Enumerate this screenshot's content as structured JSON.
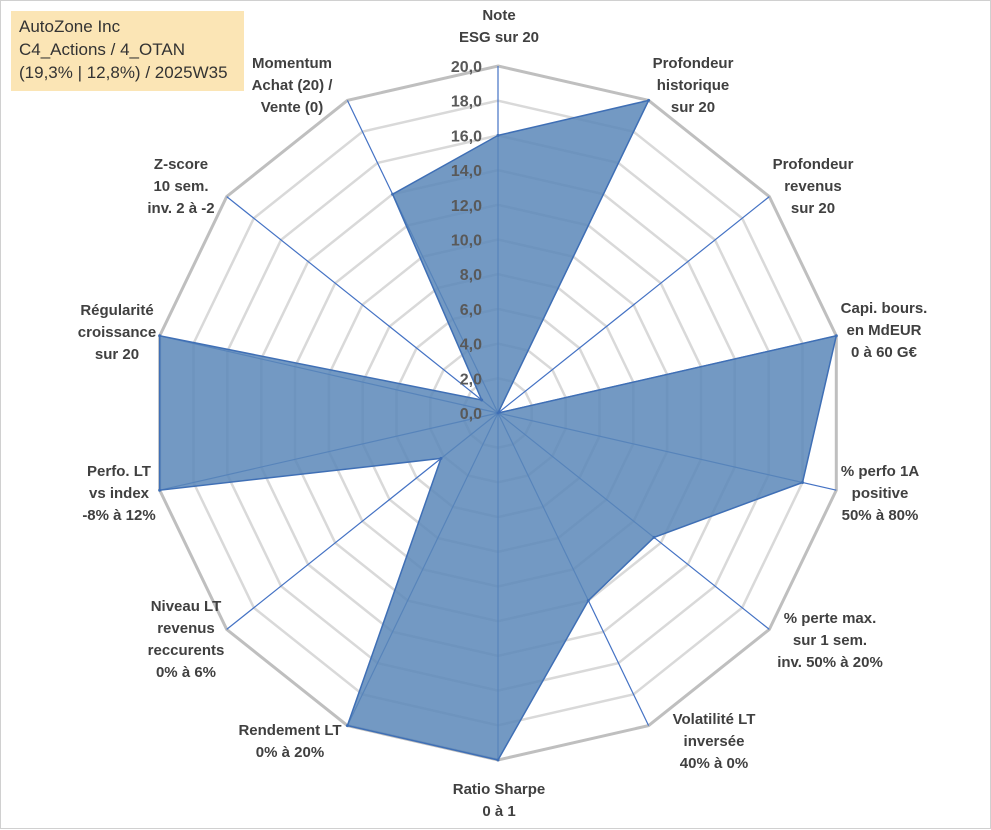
{
  "title_box": {
    "line1": "AutoZone Inc",
    "line2": "C4_Actions / 4_OTAN",
    "line3": "(19,3% | 12,8%) / 2025W35"
  },
  "colors": {
    "fill": "#5b87b8",
    "stroke": "#3f6fb5",
    "grid_outer": "#bfbfbf",
    "grid_inner": "#d9d9d9",
    "spoke": "#4472c4",
    "title_bg": "#fbe5b5"
  },
  "chart_data": {
    "type": "radar",
    "range": [
      0,
      20
    ],
    "tick_step": 2,
    "tick_labels": [
      "0,0",
      "2,0",
      "4,0",
      "6,0",
      "8,0",
      "10,0",
      "12,0",
      "14,0",
      "16,0",
      "18,0",
      "20,0"
    ],
    "axes": [
      {
        "label": [
          "Note",
          "ESG sur 20"
        ],
        "value": 16.0
      },
      {
        "label": [
          "Profondeur",
          "historique",
          "sur 20"
        ],
        "value": 20.0
      },
      {
        "label": [
          "Profondeur",
          "revenus",
          "sur 20"
        ],
        "value": 0.0
      },
      {
        "label": [
          "Capi. bours.",
          "en MdEUR",
          "0 à 60 G€"
        ],
        "value": 20.0
      },
      {
        "label": [
          "% perfo 1A",
          "positive",
          "50% à 80%"
        ],
        "value": 18.0
      },
      {
        "label": [
          "% perte max.",
          "sur 1 sem.",
          "inv. 50% à 20%"
        ],
        "value": 11.5
      },
      {
        "label": [
          "Volatilité LT",
          "inversée",
          "40% à 0%"
        ],
        "value": 12.0
      },
      {
        "label": [
          "Ratio Sharpe",
          "0 à 1"
        ],
        "value": 20.0
      },
      {
        "label": [
          "Rendement LT",
          "0% à 20%"
        ],
        "value": 20.0
      },
      {
        "label": [
          "Niveau LT",
          "revenus",
          "reccurents",
          "0% à 6%"
        ],
        "value": 4.2
      },
      {
        "label": [
          "Perfo. LT",
          "vs index",
          "-8% à 12%"
        ],
        "value": 20.0
      },
      {
        "label": [
          "Régularité",
          "croissance",
          "sur 20"
        ],
        "value": 20.0
      },
      {
        "label": [
          "Z-score",
          "10 sem.",
          "inv. 2 à -2"
        ],
        "value": 1.2
      },
      {
        "label": [
          "Momentum",
          "Achat (20) /",
          "Vente (0)"
        ],
        "value": 14.0
      }
    ]
  }
}
